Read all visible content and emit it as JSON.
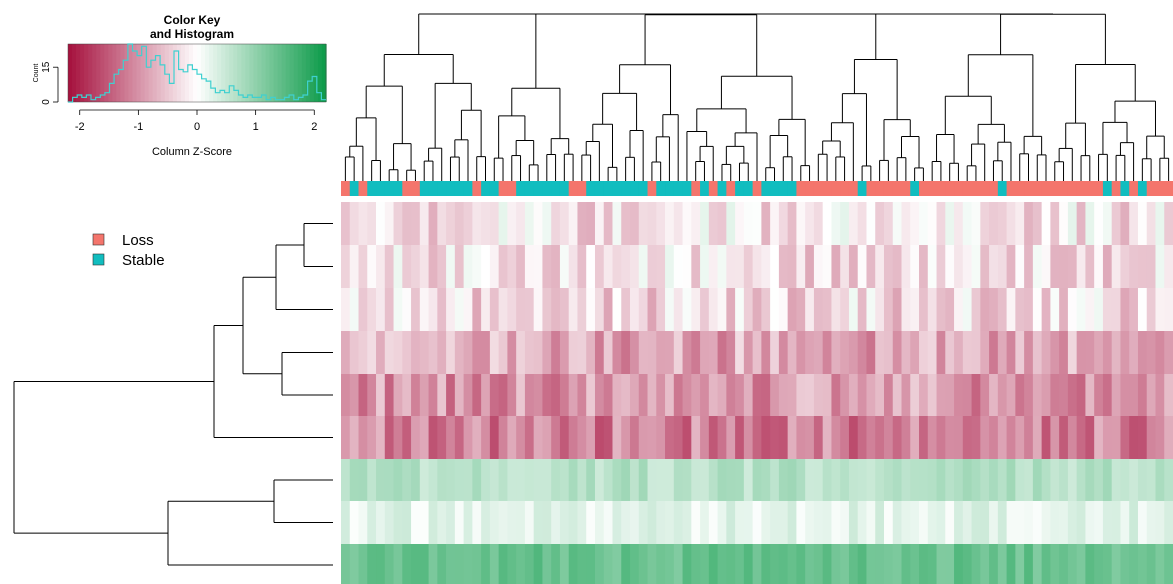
{
  "chart_data": {
    "type": "heatmap",
    "colors": {
      "low": "#a50f3c",
      "mid": "#ffffff",
      "high": "#0b9a48",
      "histogram": "#3fd0d0",
      "dendrogram": "#000000"
    },
    "color_key": {
      "title_line1": "Color Key",
      "title_line2": "and Histogram",
      "xlabel": "Column Z-Score",
      "ylabel": "Count",
      "x_ticks": [
        "-2",
        "-1",
        "0",
        "1",
        "2"
      ],
      "y_ticks": [
        "0",
        "15"
      ],
      "xlim": [
        -2.2,
        2.2
      ],
      "ylim": [
        0,
        25
      ],
      "histogram": [
        0,
        2,
        3,
        2,
        3,
        1,
        2,
        3,
        4,
        8,
        12,
        14,
        18,
        25,
        22,
        20,
        24,
        15,
        18,
        20,
        16,
        12,
        8,
        22,
        14,
        13,
        16,
        14,
        12,
        10,
        9,
        6,
        4,
        5,
        4,
        7,
        5,
        3,
        2,
        3,
        2,
        2,
        3,
        1,
        2,
        1,
        1,
        2,
        3,
        1,
        2,
        3,
        9,
        11,
        4,
        1
      ]
    },
    "legend": {
      "items": [
        {
          "label": "Loss",
          "color": "#f4756c"
        },
        {
          "label": "Stable",
          "color": "#11bdbf"
        }
      ]
    },
    "column_groups": [
      0,
      1,
      0,
      1,
      1,
      1,
      1,
      0,
      0,
      1,
      1,
      1,
      1,
      1,
      1,
      0,
      1,
      1,
      0,
      0,
      1,
      1,
      1,
      1,
      1,
      1,
      0,
      0,
      1,
      1,
      1,
      1,
      1,
      1,
      1,
      0,
      1,
      1,
      1,
      1,
      0,
      1,
      0,
      1,
      0,
      1,
      1,
      0,
      1,
      1,
      1,
      1,
      0,
      0,
      0,
      0,
      0,
      0,
      0,
      1,
      0,
      0,
      0,
      0,
      0,
      1,
      0,
      0,
      0,
      0,
      0,
      0,
      0,
      0,
      0,
      1,
      0,
      0,
      0,
      0,
      0,
      0,
      0,
      0,
      0,
      0,
      0,
      1,
      0,
      1,
      0,
      1,
      0,
      0,
      0
    ],
    "row_means": [
      -0.25,
      -0.3,
      -0.35,
      -0.8,
      -0.95,
      -1.15,
      0.65,
      0.25,
      1.35
    ]
  }
}
